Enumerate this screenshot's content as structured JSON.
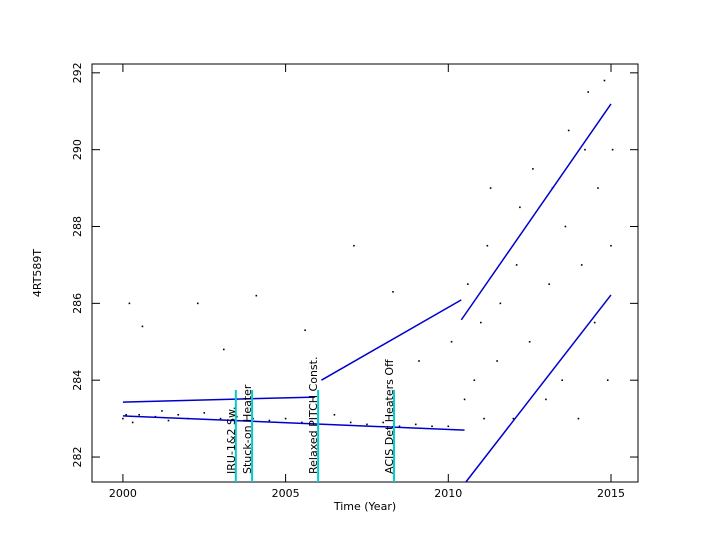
{
  "chart_data": {
    "type": "scatter",
    "x_label": "Time (Year)",
    "y_label": "4RT589T",
    "xlim": [
      1999.05,
      2015.83
    ],
    "xticks": [
      2000,
      2005,
      2010,
      2015
    ],
    "ylim": [
      281.35,
      292.23
    ],
    "yticks": [
      282,
      284,
      286,
      288,
      290,
      292
    ],
    "color": "#000000",
    "x": [
      2000,
      2000.1,
      2000.3,
      2000.2,
      2000.6,
      2000.5,
      2001,
      2001.2,
      2001.4,
      2002.3,
      2001.7,
      2002,
      2002.5,
      2003,
      2003.1,
      2003.5,
      2004,
      2004.1,
      2004.5,
      2005,
      2005.5,
      2005.6,
      2006,
      2006.5,
      2007,
      2007.1,
      2007.5,
      2008,
      2008.3,
      2008.5,
      2009,
      2009.1,
      2009.5,
      2010,
      2010.1,
      2010.5,
      2010.6,
      2010.8,
      2011,
      2011.1,
      2011.2,
      2011.3,
      2011.5,
      2011.6,
      2012,
      2012.1,
      2012.2,
      2012.5,
      2012.6,
      2013,
      2013.1,
      2013.2,
      2013.5,
      2013.6,
      2013.7,
      2014,
      2014.1,
      2014.2,
      2014.3,
      2014.5,
      2014.6,
      2014.8,
      2014.9,
      2015,
      2015.05
    ],
    "values": [
      283.0,
      283.1,
      282.9,
      286.0,
      285.4,
      283.1,
      283.05,
      283.2,
      282.95,
      286.0,
      283.1,
      283.0,
      283.15,
      283.0,
      284.8,
      283.05,
      283.0,
      286.2,
      282.95,
      283.0,
      282.9,
      285.3,
      282.95,
      283.1,
      282.9,
      287.5,
      282.85,
      282.9,
      286.3,
      282.8,
      282.85,
      284.5,
      282.8,
      282.8,
      285.0,
      283.5,
      286.5,
      284.0,
      285.5,
      283.0,
      287.5,
      289.0,
      284.5,
      286.0,
      283.0,
      287.0,
      288.5,
      285.0,
      289.5,
      283.5,
      286.5,
      289.0,
      284.0,
      288.0,
      290.5,
      283.0,
      287.0,
      290.0,
      291.5,
      285.5,
      289.0,
      291.8,
      284.0,
      287.5,
      290.0
    ],
    "fit_lines": [
      {
        "color": "#0000cc",
        "x": [
          2000,
          2005.9
        ],
        "values": [
          283.43,
          283.56
        ]
      },
      {
        "color": "#0000cc",
        "x": [
          2000,
          2010.5
        ],
        "values": [
          283.07,
          282.7
        ]
      },
      {
        "color": "#0000cc",
        "x": [
          2006.1,
          2010.4
        ],
        "values": [
          284.0,
          286.09
        ]
      },
      {
        "color": "#0000cc",
        "x": [
          2010.4,
          2015
        ],
        "values": [
          285.57,
          291.19
        ]
      },
      {
        "color": "#0000cc",
        "x": [
          2010.54,
          2015
        ],
        "values": [
          281.35,
          286.22
        ]
      }
    ],
    "event_color": "#00cccc",
    "events": [
      {
        "x": 2003.47,
        "label": "IRU-1&2 Sw."
      },
      {
        "x": 2003.97,
        "label": "Stuck-on Heater"
      },
      {
        "x": 2006.0,
        "label": "Relaxed PITCH Const."
      },
      {
        "x": 2008.33,
        "label": "ACIS Det Heaters Off"
      }
    ]
  }
}
